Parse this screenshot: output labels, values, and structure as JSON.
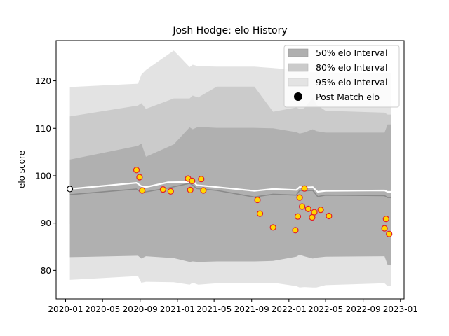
{
  "chart_data": {
    "type": "line",
    "title": "Josh Hodge: elo History",
    "ylabel": "elo score",
    "xlabel": "",
    "ylim": [
      74,
      128.5
    ],
    "xlim": [
      "2019-12-01",
      "2023-01-13"
    ],
    "x_ticks": [
      "2020-01",
      "2020-05",
      "2020-09",
      "2021-01",
      "2021-05",
      "2021-09",
      "2022-01",
      "2022-05",
      "2022-09",
      "2023-01"
    ],
    "y_ticks": [
      80,
      90,
      100,
      110,
      120
    ],
    "grid": false,
    "legend_position": "top-right",
    "legend": [
      {
        "label": "50% elo Interval",
        "color": "#b0b0b0",
        "kind": "patch"
      },
      {
        "label": "80% elo Interval",
        "color": "#cbcbcb",
        "kind": "patch"
      },
      {
        "label": "95% elo Interval",
        "color": "#e3e3e3",
        "kind": "patch"
      },
      {
        "label": "Post Match elo",
        "color": "#000000",
        "kind": "marker"
      }
    ],
    "colors": {
      "band50": "#b0b0b0",
      "band80": "#cbcbcb",
      "band95": "#e3e3e3",
      "mean_line": "#8a8a8a",
      "post_line": "#ffffff",
      "point_fill": "#ffd700",
      "point_edge": "#e0202a"
    },
    "bands": {
      "x": [
        "2020-01-15",
        "2020-08-25",
        "2020-09-05",
        "2020-09-20",
        "2020-12-20",
        "2021-02-10",
        "2021-02-20",
        "2021-03-10",
        "2021-05-10",
        "2021-09-10",
        "2021-11-10",
        "2022-01-25",
        "2022-02-05",
        "2022-02-20",
        "2022-03-20",
        "2022-04-01",
        "2022-05-01",
        "2022-11-10",
        "2022-11-20",
        "2022-12-01"
      ],
      "p50_low": [
        82.8,
        83.1,
        82.5,
        83.0,
        82.6,
        81.8,
        81.9,
        81.8,
        81.9,
        81.9,
        82.0,
        82.9,
        83.3,
        83.0,
        82.5,
        82.7,
        82.9,
        83.0,
        81.2,
        81.2
      ],
      "p50_high": [
        103.4,
        106.3,
        106.8,
        104.0,
        106.6,
        110.2,
        109.8,
        110.3,
        110.1,
        110.1,
        110.0,
        109.2,
        108.9,
        109.1,
        109.8,
        109.4,
        109.1,
        109.1,
        110.8,
        110.8
      ],
      "p80_low": [
        89.8,
        89.4,
        88.9,
        89.3,
        89.0,
        89.6,
        89.8,
        89.6,
        89.4,
        89.4,
        89.5,
        90.6,
        90.7,
        90.6,
        90.3,
        90.4,
        90.2,
        90.5,
        89.7,
        89.7
      ],
      "p80_high": [
        112.5,
        114.8,
        115.3,
        114.1,
        116.3,
        116.3,
        116.9,
        116.5,
        118.8,
        118.8,
        113.5,
        114.4,
        114.1,
        114.2,
        116.5,
        115.0,
        113.7,
        113.3,
        112.9,
        112.9
      ],
      "p95_low": [
        78.0,
        78.8,
        77.4,
        77.6,
        77.5,
        77.0,
        77.4,
        77.0,
        77.3,
        77.3,
        77.4,
        76.7,
        76.4,
        76.5,
        76.4,
        76.4,
        76.9,
        77.3,
        76.7,
        76.7
      ],
      "p95_high": [
        118.7,
        119.4,
        121.3,
        122.3,
        126.4,
        122.9,
        123.4,
        123.1,
        123.0,
        123.0,
        122.7,
        122.3,
        122.0,
        121.9,
        121.8,
        121.8,
        121.8,
        121.6,
        121.6,
        121.6
      ]
    },
    "mean_line": {
      "x": [
        "2020-01-15",
        "2020-08-20",
        "2020-09-05",
        "2020-09-20",
        "2020-12-01",
        "2021-02-10",
        "2021-02-20",
        "2021-03-05",
        "2021-05-10",
        "2021-09-10",
        "2021-11-10",
        "2022-01-25",
        "2022-02-05",
        "2022-02-20",
        "2022-03-20",
        "2022-04-05",
        "2022-05-01",
        "2022-11-10",
        "2022-11-20",
        "2022-12-01"
      ],
      "y": [
        96.0,
        97.2,
        96.4,
        96.6,
        97.4,
        98.4,
        98.0,
        97.3,
        96.9,
        95.5,
        96.1,
        95.9,
        96.9,
        96.8,
        96.9,
        95.6,
        95.9,
        95.8,
        95.4,
        95.4
      ]
    },
    "post_match_line": {
      "x": [
        "2020-01-15",
        "2020-08-20",
        "2020-09-05",
        "2020-09-20",
        "2020-12-01",
        "2021-02-10",
        "2021-02-20",
        "2021-03-05",
        "2021-05-10",
        "2021-09-10",
        "2021-11-10",
        "2022-01-25",
        "2022-02-05",
        "2022-02-20",
        "2022-03-20",
        "2022-04-05",
        "2022-05-01",
        "2022-11-10",
        "2022-11-20",
        "2022-12-01"
      ],
      "y": [
        97.2,
        98.5,
        97.8,
        97.6,
        98.6,
        98.7,
        99.0,
        98.0,
        97.6,
        96.8,
        97.2,
        97.0,
        97.6,
        97.5,
        97.6,
        96.6,
        96.8,
        96.9,
        96.6,
        96.6
      ]
    },
    "start_point": {
      "x": "2020-01-15",
      "y": 97.2
    },
    "points": [
      {
        "x": "2020-08-20",
        "y": 101.2
      },
      {
        "x": "2020-08-30",
        "y": 99.7
      },
      {
        "x": "2020-09-08",
        "y": 96.9
      },
      {
        "x": "2020-11-15",
        "y": 97.1
      },
      {
        "x": "2020-12-10",
        "y": 96.7
      },
      {
        "x": "2021-02-05",
        "y": 99.4
      },
      {
        "x": "2021-02-12",
        "y": 97.0
      },
      {
        "x": "2021-02-18",
        "y": 98.9
      },
      {
        "x": "2021-03-20",
        "y": 99.3
      },
      {
        "x": "2021-03-27",
        "y": 96.9
      },
      {
        "x": "2021-09-20",
        "y": 94.9
      },
      {
        "x": "2021-09-28",
        "y": 92.0
      },
      {
        "x": "2021-11-10",
        "y": 89.1
      },
      {
        "x": "2022-01-22",
        "y": 88.5
      },
      {
        "x": "2022-01-30",
        "y": 91.4
      },
      {
        "x": "2022-02-05",
        "y": 95.4
      },
      {
        "x": "2022-02-13",
        "y": 93.5
      },
      {
        "x": "2022-02-21",
        "y": 97.3
      },
      {
        "x": "2022-03-05",
        "y": 93.0
      },
      {
        "x": "2022-03-18",
        "y": 91.2
      },
      {
        "x": "2022-03-25",
        "y": 92.3
      },
      {
        "x": "2022-04-15",
        "y": 92.8
      },
      {
        "x": "2022-05-12",
        "y": 91.5
      },
      {
        "x": "2022-11-10",
        "y": 88.9
      },
      {
        "x": "2022-11-15",
        "y": 90.9
      },
      {
        "x": "2022-11-25",
        "y": 87.7
      }
    ]
  }
}
